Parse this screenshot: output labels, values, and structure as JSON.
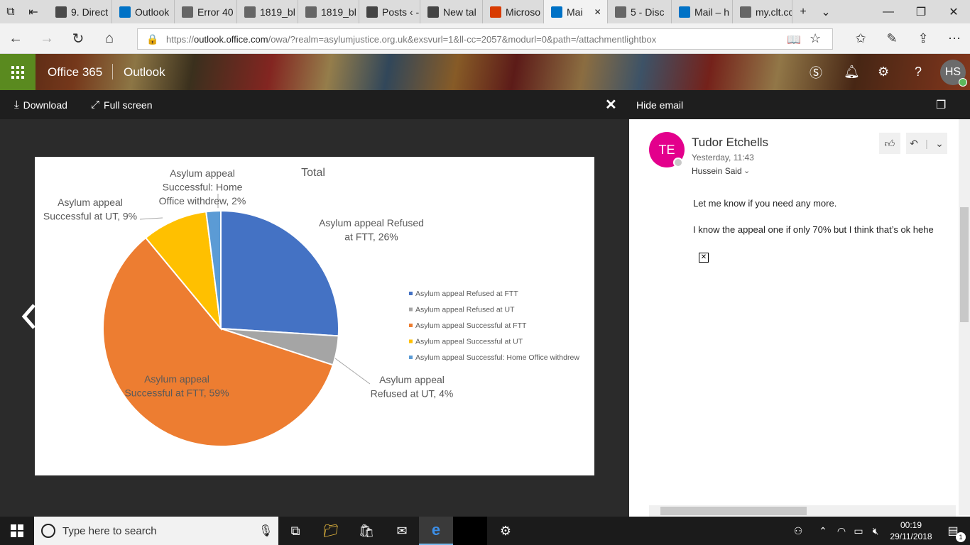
{
  "browser": {
    "tabs": [
      {
        "label": "9. Direct",
        "icon": "bb-icon",
        "color": "#4a4a4a"
      },
      {
        "label": "Outlook",
        "icon": "outlook-icon",
        "color": "#0072c6"
      },
      {
        "label": "Error 40",
        "icon": "page-icon",
        "color": "#666666"
      },
      {
        "label": "1819_bl",
        "icon": "page-icon",
        "color": "#666666"
      },
      {
        "label": "1819_bl",
        "icon": "page-icon",
        "color": "#666666"
      },
      {
        "label": "Posts ‹ -",
        "icon": "wordpress-icon",
        "color": "#444444"
      },
      {
        "label": "New tal",
        "icon": "newtab-icon",
        "color": "#444444"
      },
      {
        "label": "Microso",
        "icon": "office-icon",
        "color": "#d83b01"
      },
      {
        "label": "Mai",
        "icon": "outlook-icon",
        "color": "#0072c6"
      },
      {
        "label": "5 - Disc",
        "icon": "page-icon",
        "color": "#666666"
      },
      {
        "label": "Mail – h",
        "icon": "outlook-icon",
        "color": "#0072c6"
      },
      {
        "label": "my.clt.cc",
        "icon": "page-icon",
        "color": "#666666"
      }
    ],
    "url_prefix": "https://",
    "url_host": "outlook.office.com",
    "url_rest": "/owa/?realm=asylumjustice.org.uk&exsvurl=1&ll-cc=2057&modurl=0&path=/attachmentlightbox"
  },
  "suite": {
    "brand": "Office 365",
    "app": "Outlook",
    "avatar_initials": "HS"
  },
  "lightbox": {
    "download_label": "Download",
    "fullscreen_label": "Full screen",
    "hide_email_label": "Hide email"
  },
  "email": {
    "sender_initials": "TE",
    "sender": "Tudor Etchells",
    "time": "Yesterday, 11:43",
    "recipient": "Hussein Said",
    "line1": "Let me know if you need any more.",
    "line2": "I know the appeal one if only 70% but I think that’s ok hehe"
  },
  "chart_data": {
    "type": "pie",
    "title": "Total",
    "slices": [
      {
        "name": "Asylum appeal Refused at FTT",
        "value": 26,
        "color": "#4472c4",
        "label_a": "Asylum appeal Refused",
        "label_b": "at FTT, 26%"
      },
      {
        "name": "Asylum appeal Refused at UT",
        "value": 4,
        "color": "#a5a5a5",
        "label_a": "Asylum appeal",
        "label_b": "Refused at UT, 4%"
      },
      {
        "name": "Asylum appeal Successful at FTT",
        "value": 59,
        "color": "#ed7d31",
        "label_a": "Asylum appeal",
        "label_b": "Successful at FTT, 59%"
      },
      {
        "name": "Asylum appeal Successful at UT",
        "value": 9,
        "color": "#ffc000",
        "label_a": "Asylum appeal",
        "label_b": "Successful at UT, 9%"
      },
      {
        "name": "Asylum appeal Successful: Home Office withdrew",
        "value": 2,
        "color": "#5b9bd5",
        "label_a": "Asylum appeal",
        "label_b": "Successful: Home",
        "label_c": "Office withdrew, 2%"
      }
    ],
    "legend_position": "right"
  },
  "taskbar": {
    "search_placeholder": "Type here to search",
    "time": "00:19",
    "date": "29/11/2018",
    "notification_count": "1"
  }
}
